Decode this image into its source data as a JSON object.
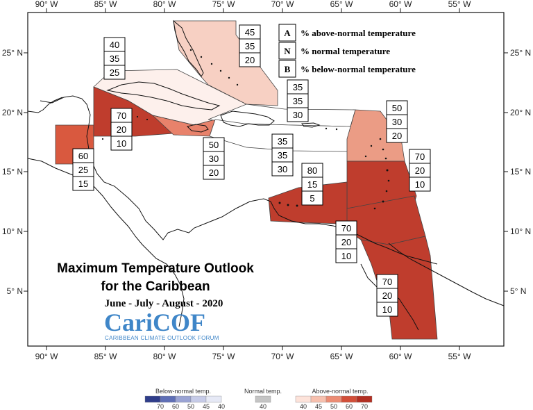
{
  "map": {
    "title_line1": "Maximum Temperature Outlook",
    "title_line2": "for the Caribbean",
    "season": "June - July - August - 2020",
    "logo_main": "CariCOF",
    "logo_sub": "CARIBBEAN CLIMATE OUTLOOK FORUM",
    "lon_labels": [
      "90° W",
      "85° W",
      "80° W",
      "75° W",
      "70° W",
      "65° W",
      "60° W",
      "55° W"
    ],
    "lat_labels": [
      "25° N",
      "20° N",
      "15° N",
      "10° N",
      "5° N"
    ]
  },
  "key": [
    {
      "letter": "A",
      "text": "% above-normal temperature"
    },
    {
      "letter": "N",
      "text": "% normal temperature"
    },
    {
      "letter": "B",
      "text": "% below-normal temperature"
    }
  ],
  "regions": [
    {
      "name": "bahamas",
      "above": 45,
      "normal": 35,
      "below": 20,
      "color": "#f7d0c3"
    },
    {
      "name": "cuba",
      "above": 40,
      "normal": 35,
      "below": 25,
      "color": "#fdf0ec"
    },
    {
      "name": "belize",
      "above": 60,
      "normal": 25,
      "below": 15,
      "color": "#d9593f"
    },
    {
      "name": "cayman-jamaica-sea",
      "above": 70,
      "normal": 20,
      "below": 10,
      "color": "#bf3d2d"
    },
    {
      "name": "jamaica",
      "above": 50,
      "normal": 30,
      "below": 20,
      "color": "#e8826b"
    },
    {
      "name": "hispaniola-north",
      "above": 35,
      "normal": 35,
      "below": 30,
      "color": "#ffffff"
    },
    {
      "name": "puerto-rico-south",
      "above": 35,
      "normal": 35,
      "below": 30,
      "color": "#ffffff"
    },
    {
      "name": "leeward-islands",
      "above": 50,
      "normal": 30,
      "below": 20,
      "color": "#eb9c85"
    },
    {
      "name": "windward-islands",
      "above": 70,
      "normal": 20,
      "below": 10,
      "color": "#bf3d2d"
    },
    {
      "name": "abc-islands",
      "above": 80,
      "normal": 15,
      "below": 5,
      "color": "#bf3d2d"
    },
    {
      "name": "trinidad",
      "above": 70,
      "normal": 20,
      "below": 10,
      "color": "#bf3d2d"
    },
    {
      "name": "guianas",
      "above": 70,
      "normal": 20,
      "below": 10,
      "color": "#bf3d2d"
    }
  ],
  "legend": {
    "below_title": "Below-normal temp.",
    "normal_title": "Normal temp.",
    "above_title": "Above-normal temp.",
    "below_colors": [
      "#2f3d8a",
      "#5f6fb6",
      "#9aa3d4",
      "#c6cbe8",
      "#e6e9f6"
    ],
    "below_ticks": [
      "70",
      "60",
      "50",
      "45",
      "40"
    ],
    "normal_color": "#c4c4c4",
    "normal_tick": "40",
    "above_colors": [
      "#fde3da",
      "#f7c0ae",
      "#ec8c74",
      "#d24f39",
      "#b22f22"
    ],
    "above_ticks": [
      "40",
      "45",
      "50",
      "60",
      "70"
    ]
  }
}
